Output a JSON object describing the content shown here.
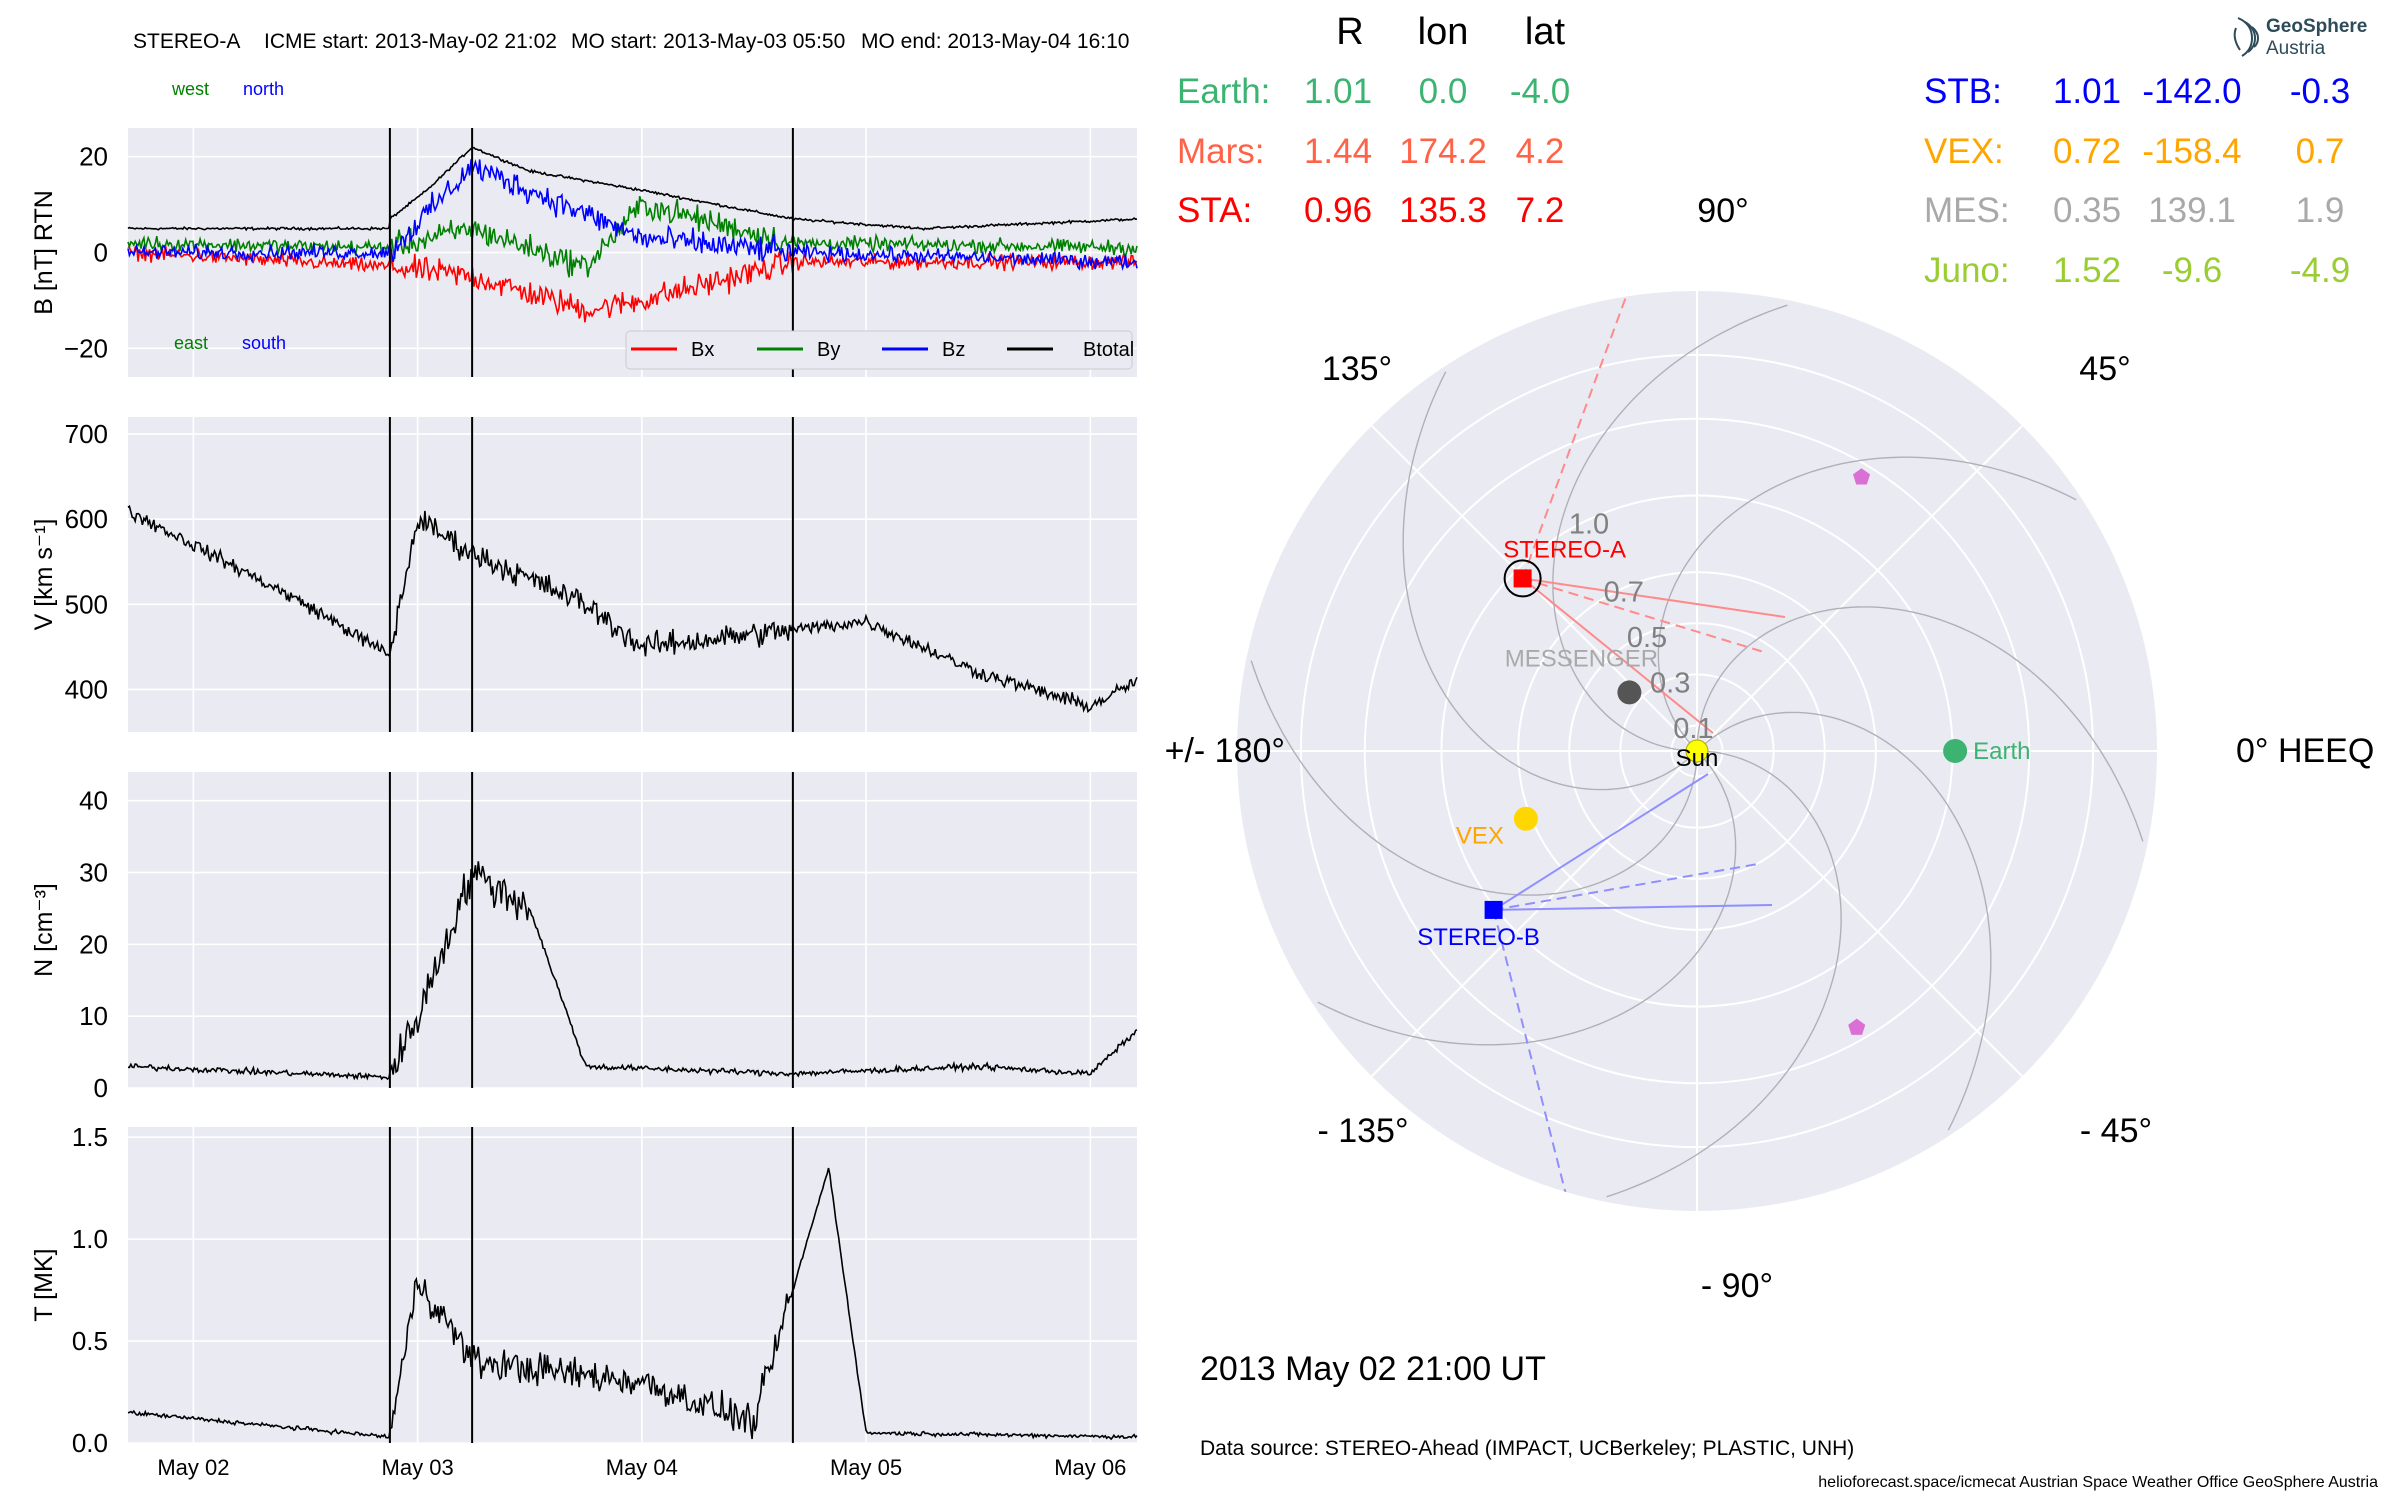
{
  "header": {
    "spacecraft": "STEREO-A",
    "icme_start": "ICME start: 2013-May-02 21:02",
    "mo_start": "MO start: 2013-May-03 05:50",
    "mo_end": "MO end: 2013-May-04 16:10"
  },
  "logo": {
    "line1": "GeoSphere",
    "line2": "Austria"
  },
  "footer": {
    "timestamp": "2013 May 02  21:00 UT",
    "data_source": "Data source: STEREO-Ahead (IMPACT, UCBerkeley; PLASTIC, UNH)",
    "credits": "helioforecast.space/icmecat   Austrian Space Weather Office   GeoSphere Austria"
  },
  "colors": {
    "panel_bg": "#eaeaf2",
    "grid": "#ffffff",
    "bx": "#ff0000",
    "by": "#008000",
    "bz": "#0000ff",
    "btotal": "#000000",
    "earth": "#3cb371",
    "mars": "#ff6347",
    "sta": "#ff0000",
    "stb": "#0000ff",
    "vex": "#ffa500",
    "mes": "#a9a9a9",
    "juno": "#9acd32"
  },
  "chart_data": [
    {
      "type": "line",
      "panel": "magnetic_field",
      "ylabel": "B [nT] RTN",
      "ylim": [
        -26,
        26
      ],
      "yticks": [
        "20",
        "0",
        "−20"
      ],
      "xticks": [
        "May 02",
        "May 03",
        "May 04",
        "May 05",
        "May 06"
      ],
      "time_range": [
        "2013-05-01T17:00",
        "2013-05-06T05:00"
      ],
      "event_markers": [
        "2013-05-02T21:02",
        "2013-05-03T05:50",
        "2013-05-04T16:10"
      ],
      "direction_labels": {
        "west": "west",
        "north": "north",
        "east": "east",
        "south": "south"
      },
      "legend": [
        "Bx",
        "By",
        "Bz",
        "Btotal"
      ],
      "series": [
        {
          "name": "Btotal",
          "x": [
            "2013-05-01T17:00",
            "2013-05-02T21:00",
            "2013-05-02T21:02",
            "2013-05-03T01:00",
            "2013-05-03T05:50",
            "2013-05-03T12:00",
            "2013-05-04T00:00",
            "2013-05-04T16:10",
            "2013-05-05T06:00",
            "2013-05-06T05:00"
          ],
          "values": [
            5,
            5,
            7,
            13,
            22,
            17,
            13,
            7,
            5,
            7
          ]
        },
        {
          "name": "Bx",
          "x": [
            "2013-05-01T17:00",
            "2013-05-02T21:00",
            "2013-05-03T05:50",
            "2013-05-03T18:00",
            "2013-05-04T00:00",
            "2013-05-04T16:10",
            "2013-05-06T05:00"
          ],
          "values": [
            0,
            -3,
            -5,
            -12,
            -10,
            -2,
            -2
          ]
        },
        {
          "name": "By",
          "x": [
            "2013-05-01T17:00",
            "2013-05-02T21:00",
            "2013-05-03T05:50",
            "2013-05-03T18:00",
            "2013-05-04T00:00",
            "2013-05-04T16:10",
            "2013-05-06T05:00"
          ],
          "values": [
            2,
            1,
            5,
            -3,
            10,
            2,
            1
          ]
        },
        {
          "name": "Bz",
          "x": [
            "2013-05-01T17:00",
            "2013-05-02T21:00",
            "2013-05-03T05:50",
            "2013-05-03T18:00",
            "2013-05-04T00:00",
            "2013-05-04T16:10",
            "2013-05-06T05:00"
          ],
          "values": [
            0,
            0,
            18,
            8,
            3,
            0,
            -2
          ]
        }
      ]
    },
    {
      "type": "line",
      "panel": "speed",
      "ylabel": "V [km s⁻¹]",
      "ylim": [
        350,
        720
      ],
      "yticks": [
        "700",
        "600",
        "500",
        "400"
      ],
      "xticks": [
        "May 02",
        "May 03",
        "May 04",
        "May 05",
        "May 06"
      ],
      "time_range": [
        "2013-05-01T17:00",
        "2013-05-06T05:00"
      ],
      "event_markers": [
        "2013-05-02T21:02",
        "2013-05-03T05:50",
        "2013-05-04T16:10"
      ],
      "series": [
        {
          "name": "V",
          "x": [
            "2013-05-01T17:00",
            "2013-05-02T00:00",
            "2013-05-02T12:00",
            "2013-05-02T21:00",
            "2013-05-03T00:00",
            "2013-05-03T05:50",
            "2013-05-03T18:00",
            "2013-05-04T00:00",
            "2013-05-04T16:10",
            "2013-05-05T00:00",
            "2013-05-05T12:00",
            "2013-05-06T00:00",
            "2013-05-06T05:00"
          ],
          "values": [
            610,
            570,
            500,
            440,
            600,
            560,
            500,
            450,
            470,
            480,
            420,
            380,
            410
          ]
        }
      ]
    },
    {
      "type": "line",
      "panel": "density",
      "ylabel": "N [cm⁻³]",
      "ylim": [
        0,
        44
      ],
      "yticks": [
        "40",
        "30",
        "20",
        "10",
        "0"
      ],
      "xticks": [
        "May 02",
        "May 03",
        "May 04",
        "May 05",
        "May 06"
      ],
      "time_range": [
        "2013-05-01T17:00",
        "2013-05-06T05:00"
      ],
      "event_markers": [
        "2013-05-02T21:02",
        "2013-05-03T05:50",
        "2013-05-04T16:10"
      ],
      "series": [
        {
          "name": "N",
          "x": [
            "2013-05-01T17:00",
            "2013-05-02T21:00",
            "2013-05-03T00:00",
            "2013-05-03T05:50",
            "2013-05-03T12:00",
            "2013-05-03T18:00",
            "2013-05-04T16:10",
            "2013-05-05T12:00",
            "2013-05-06T00:00",
            "2013-05-06T05:00"
          ],
          "values": [
            3,
            1.5,
            10,
            30,
            25,
            3,
            2,
            3,
            2,
            8
          ]
        }
      ]
    },
    {
      "type": "line",
      "panel": "temperature",
      "ylabel": "T [MK]",
      "ylim": [
        0,
        1.55
      ],
      "yticks": [
        "1.5",
        "1.0",
        "0.5",
        "0.0"
      ],
      "xticks": [
        "May 02",
        "May 03",
        "May 04",
        "May 05",
        "May 06"
      ],
      "time_range": [
        "2013-05-01T17:00",
        "2013-05-06T05:00"
      ],
      "event_markers": [
        "2013-05-02T21:02",
        "2013-05-03T05:50",
        "2013-05-04T16:10"
      ],
      "series": [
        {
          "name": "T",
          "x": [
            "2013-05-01T17:00",
            "2013-05-02T21:00",
            "2013-05-03T00:00",
            "2013-05-03T06:00",
            "2013-05-04T00:00",
            "2013-05-04T12:00",
            "2013-05-04T20:00",
            "2013-05-05T00:00",
            "2013-05-06T05:00"
          ],
          "values": [
            0.15,
            0.03,
            0.8,
            0.4,
            0.3,
            0.1,
            1.35,
            0.05,
            0.03
          ]
        }
      ]
    },
    {
      "type": "scatter",
      "panel": "polar_orbit_view",
      "projection": "polar",
      "frame_label": "0° HEEQ",
      "r_max_au": 1.8,
      "radial_labels": [
        "0.1",
        "0.3",
        "0.5",
        "0.7",
        "1.0"
      ],
      "angle_labels": [
        "90°",
        "45°",
        "0° HEEQ",
        "- 45°",
        "- 90°",
        "- 135°",
        "+/- 180°",
        "135°"
      ],
      "body_labels": {
        "sun": "Sun",
        "earth": "Earth",
        "stereo_a": "STEREO-A",
        "stereo_b": "STEREO-B",
        "messenger": "MESSENGER",
        "vex": "VEX"
      },
      "positions_table": {
        "columns": [
          "R",
          "lon",
          "lat"
        ],
        "rows_left": [
          {
            "name": "Earth:",
            "r": "1.01",
            "lon": "0.0",
            "lat": "-4.0",
            "color": "#3cb371"
          },
          {
            "name": "Mars:",
            "r": "1.44",
            "lon": "174.2",
            "lat": "4.2",
            "color": "#ff6347"
          },
          {
            "name": "STA:",
            "r": "0.96",
            "lon": "135.3",
            "lat": "7.2",
            "color": "#ff0000"
          }
        ],
        "rows_right": [
          {
            "name": "STB:",
            "r": "1.01",
            "lon": "-142.0",
            "lat": "-0.3",
            "color": "#0000ff"
          },
          {
            "name": "VEX:",
            "r": "0.72",
            "lon": "-158.4",
            "lat": "0.7",
            "color": "#ffa500"
          },
          {
            "name": "MES:",
            "r": "0.35",
            "lon": "139.1",
            "lat": "1.9",
            "color": "#a9a9a9"
          },
          {
            "name": "Juno:",
            "r": "1.52",
            "lon": "-9.6",
            "lat": "-4.9",
            "color": "#9acd32"
          }
        ]
      },
      "bodies": [
        {
          "name": "Earth",
          "r": 1.01,
          "lon": 0.0,
          "color": "#3cb371",
          "marker": "circle"
        },
        {
          "name": "STEREO-A",
          "r": 0.96,
          "lon": 135.3,
          "color": "#ff0000",
          "marker": "square"
        },
        {
          "name": "STEREO-B",
          "r": 1.01,
          "lon": -142.0,
          "color": "#0000ff",
          "marker": "square"
        },
        {
          "name": "VEX",
          "r": 0.72,
          "lon": -158.4,
          "color": "#ffd700",
          "marker": "circle"
        },
        {
          "name": "MESSENGER",
          "r": 0.35,
          "lon": 139.1,
          "color": "#555555",
          "marker": "circle"
        },
        {
          "name": "Mars",
          "r": 1.44,
          "lon": 174.2,
          "color": "#ff6347",
          "marker": "none"
        },
        {
          "name": "Juno",
          "r": 1.52,
          "lon": -9.6,
          "color": "#9acd32",
          "marker": "none"
        }
      ],
      "unlabeled_markers": [
        {
          "r": 1.25,
          "lon": 59.0,
          "color": "#da70d6",
          "marker": "pentagon"
        },
        {
          "r": 1.25,
          "lon": -60.0,
          "color": "#da70d6",
          "marker": "pentagon"
        }
      ]
    }
  ]
}
